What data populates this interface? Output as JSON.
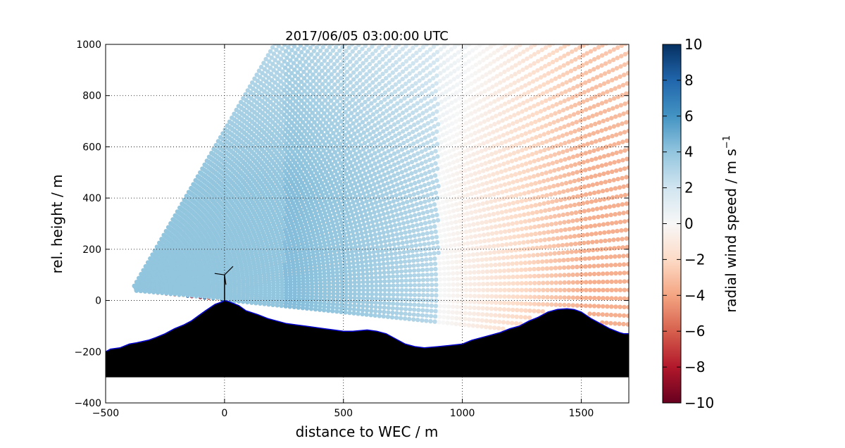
{
  "chart_data": {
    "type": "scatter",
    "title": "2017/06/05 03:00:00 UTC",
    "xlabel": "distance to WEC / m",
    "ylabel": "rel. height / m",
    "xlim": [
      -500,
      1700
    ],
    "ylim": [
      -400,
      1000
    ],
    "x_ticks": [
      -500,
      0,
      500,
      1000,
      1500
    ],
    "y_ticks": [
      -400,
      -200,
      0,
      200,
      400,
      600,
      800,
      1000
    ],
    "x_tick_labels": [
      "−500",
      "0",
      "500",
      "1000",
      "1500"
    ],
    "y_tick_labels": [
      "−400",
      "−200",
      "0",
      "200",
      "400",
      "600",
      "800",
      "1000"
    ],
    "grid": true,
    "scan": {
      "origin": [
        -390,
        40
      ],
      "elevation_deg": [
        -5.5,
        58
      ],
      "range_m": [
        0,
        2500
      ],
      "description_values": "radial wind speed: positive (blue, up to ~4) for x below ~900 m, negative (red, down to ~-4) for x above ~1000 m"
    },
    "terrain": {
      "x": [
        -500,
        -480,
        -440,
        -400,
        -370,
        -320,
        -290,
        -250,
        -210,
        -170,
        -140,
        -110,
        -80,
        -40,
        -10,
        0,
        20,
        60,
        90,
        140,
        180,
        220,
        260,
        300,
        340,
        380,
        420,
        460,
        500,
        540,
        600,
        640,
        680,
        720,
        760,
        800,
        840,
        900,
        950,
        1000,
        1040,
        1080,
        1120,
        1160,
        1200,
        1240,
        1280,
        1320,
        1360,
        1400,
        1440,
        1470,
        1500,
        1540,
        1580,
        1620,
        1660,
        1680,
        1700
      ],
      "y": [
        -200,
        -190,
        -185,
        -170,
        -165,
        -155,
        -145,
        -130,
        -110,
        -95,
        -80,
        -60,
        -40,
        -15,
        -5,
        0,
        -5,
        -20,
        -40,
        -55,
        -70,
        -80,
        -90,
        -95,
        -100,
        -105,
        -110,
        -115,
        -120,
        -120,
        -115,
        -120,
        -130,
        -150,
        -170,
        -180,
        -185,
        -180,
        -175,
        -170,
        -155,
        -145,
        -135,
        -125,
        -110,
        -100,
        -80,
        -65,
        -45,
        -35,
        -32,
        -35,
        -45,
        -70,
        -90,
        -110,
        -125,
        -130,
        -130
      ],
      "base": -300,
      "color": "#000000",
      "edge_color": "#0000cc"
    },
    "colorbar": {
      "label": "radial wind speed / m s",
      "label_superscript": "−1",
      "min": -10,
      "max": 10,
      "ticks": [
        10,
        8,
        6,
        4,
        2,
        0,
        -2,
        -4,
        -6,
        -8,
        -10
      ],
      "tick_labels": [
        "10",
        "8",
        "6",
        "4",
        "2",
        "0",
        "−2",
        "−4",
        "−6",
        "−8",
        "−10"
      ],
      "colormap": "RdBu",
      "stops": [
        "#67001f",
        "#b2182b",
        "#d6604d",
        "#f4a582",
        "#fddbc7",
        "#f7f7f7",
        "#d1e5f0",
        "#92c5de",
        "#4393c3",
        "#2166ac",
        "#053061"
      ]
    }
  }
}
